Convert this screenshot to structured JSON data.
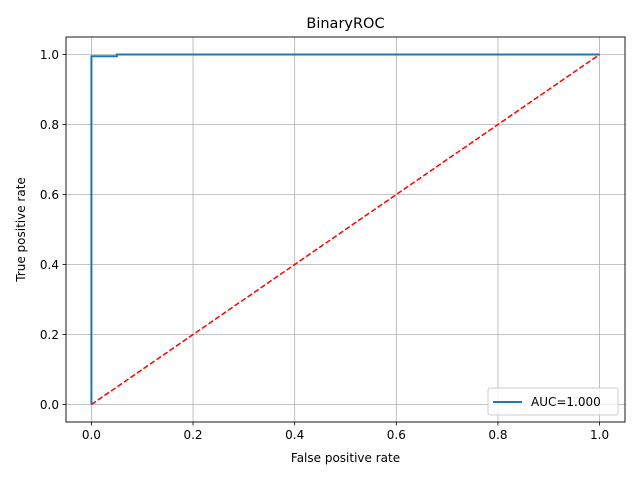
{
  "chart_data": {
    "type": "line",
    "title": "BinaryROC",
    "xlabel": "False positive rate",
    "ylabel": "True positive rate",
    "xlim": [
      -0.05,
      1.05
    ],
    "ylim": [
      -0.05,
      1.05
    ],
    "xticks": [
      0.0,
      0.2,
      0.4,
      0.6,
      0.8,
      1.0
    ],
    "xtick_labels": [
      "0.0",
      "0.2",
      "0.4",
      "0.6",
      "0.8",
      "1.0"
    ],
    "yticks": [
      0.0,
      0.2,
      0.4,
      0.6,
      0.8,
      1.0
    ],
    "ytick_labels": [
      "0.0",
      "0.2",
      "0.4",
      "0.6",
      "0.8",
      "1.0"
    ],
    "grid": true,
    "legend": "lower-right",
    "series": [
      {
        "name": "AUC=1.000",
        "color": "#1f77b4",
        "style": "solid",
        "x": [
          0.0,
          0.0,
          0.05,
          0.05,
          1.0
        ],
        "y": [
          0.0,
          0.995,
          0.995,
          1.0,
          1.0
        ]
      },
      {
        "color": "#ff0000",
        "style": "dashed",
        "x": [
          0.0,
          1.0
        ],
        "y": [
          0.0,
          1.0
        ]
      }
    ]
  }
}
